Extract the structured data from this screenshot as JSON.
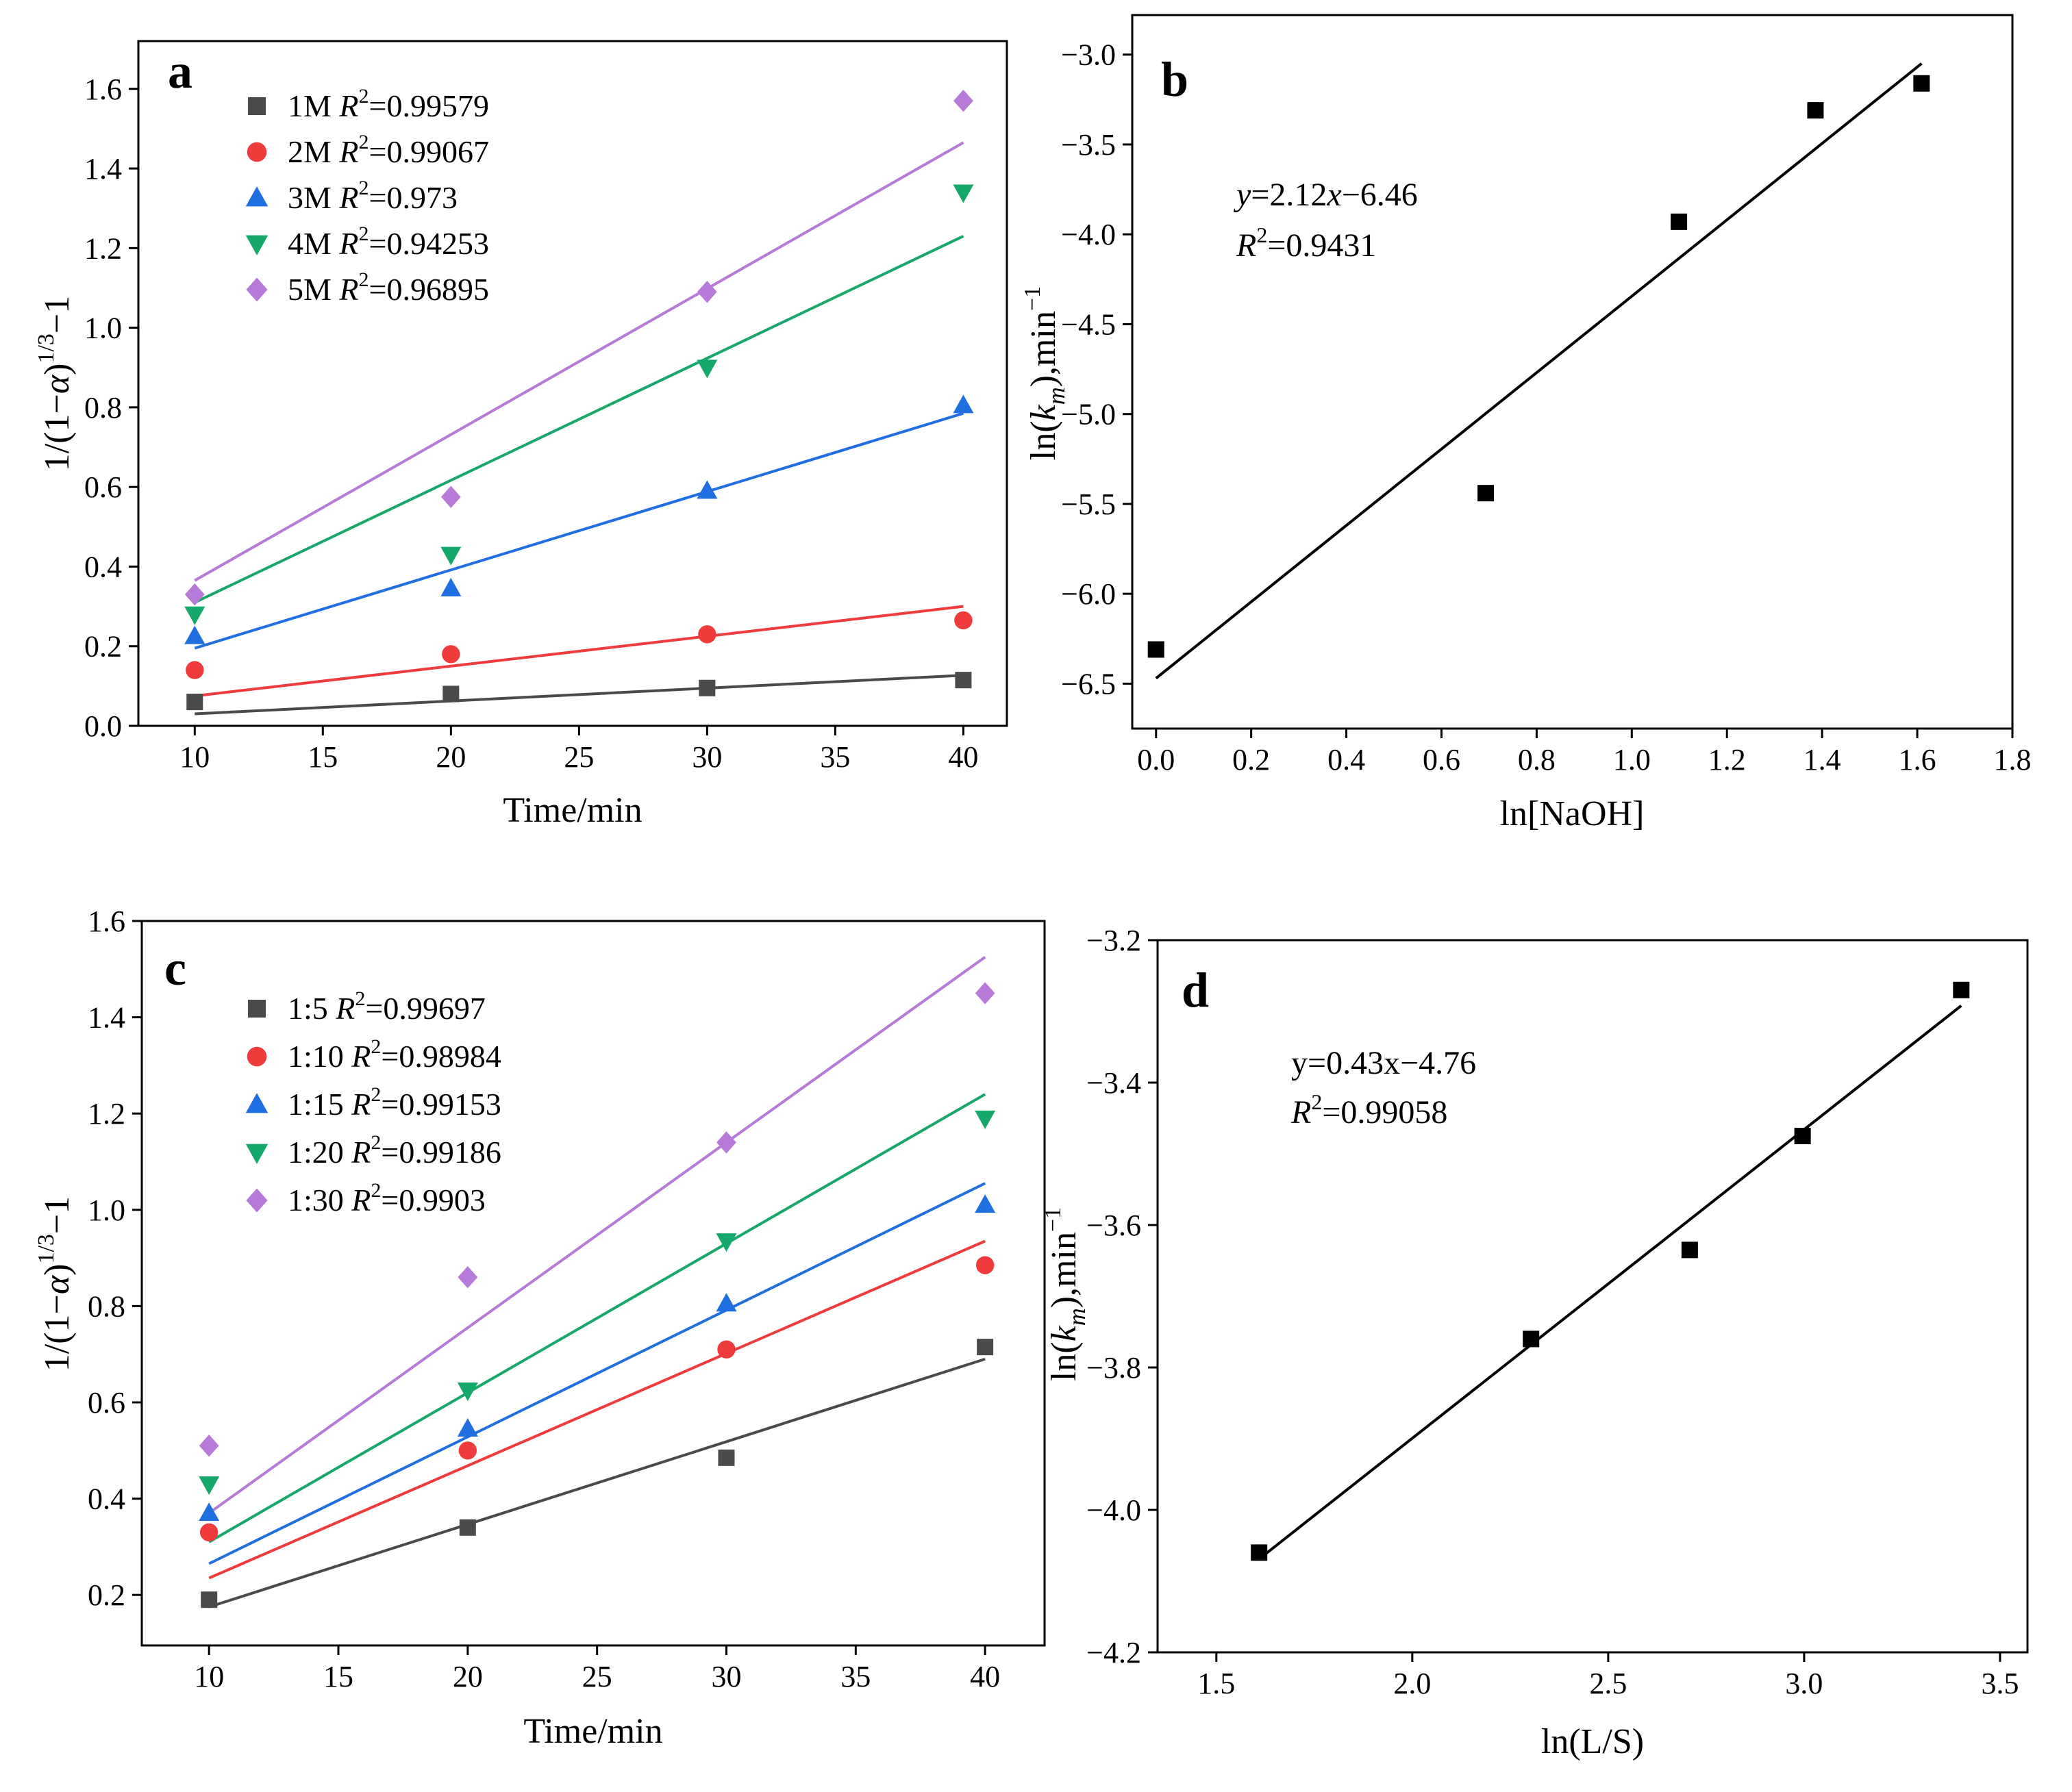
{
  "colors": {
    "series1": "#4a4a4a",
    "series2": "#ef3b3b",
    "series3": "#1f6fe0",
    "series4": "#15a86a",
    "series5": "#b77ad8",
    "black": "#000000"
  },
  "chart_data": [
    {
      "panel": "a",
      "type": "scatter",
      "xlabel": "Time/min",
      "ylabel": {
        "main": "1/(1−",
        "alpha": "α",
        "mid": ")",
        "sup": "1/3",
        "tail": "−1"
      },
      "xlim": [
        7.8,
        41.7
      ],
      "ylim": [
        0,
        1.72
      ],
      "xticks": [
        10,
        15,
        20,
        25,
        30,
        35,
        40
      ],
      "xtick_labels": [
        "10",
        "15",
        "20",
        "25",
        "30",
        "35",
        "40"
      ],
      "yticks": [
        0,
        0.2,
        0.4,
        0.6,
        0.8,
        1.0,
        1.2,
        1.4,
        1.6
      ],
      "ytick_labels": [
        "0.0",
        "0.2",
        "0.4",
        "0.6",
        "0.8",
        "1.0",
        "1.2",
        "1.4",
        "1.6"
      ],
      "legend_position": "top-left",
      "series": [
        {
          "name": "1M",
          "r2_label": "R",
          "r2_sup": "2",
          "r2_value": "=0.99579",
          "marker": "square",
          "color": "#4a4a4a",
          "x": [
            10,
            20,
            30,
            40
          ],
          "values": [
            0.06,
            0.08,
            0.095,
            0.115
          ],
          "fit": [
            0.03,
            0.127
          ]
        },
        {
          "name": "2M",
          "r2_label": "R",
          "r2_sup": "2",
          "r2_value": "=0.99067",
          "marker": "circle",
          "color": "#ef3b3b",
          "x": [
            10,
            20,
            30,
            40
          ],
          "values": [
            0.14,
            0.18,
            0.23,
            0.265
          ],
          "fit": [
            0.075,
            0.3
          ]
        },
        {
          "name": "3M",
          "r2_label": "R",
          "r2_sup": "2",
          "r2_value": "=0.973",
          "marker": "triangle-up",
          "color": "#1f6fe0",
          "x": [
            10,
            20,
            30,
            40
          ],
          "values": [
            0.225,
            0.345,
            0.59,
            0.805
          ],
          "fit": [
            0.195,
            0.785
          ]
        },
        {
          "name": "4M",
          "r2_label": "R",
          "r2_sup": "2",
          "r2_value": "=0.94253",
          "marker": "triangle-down",
          "color": "#15a86a",
          "x": [
            10,
            20,
            30,
            40
          ],
          "values": [
            0.28,
            0.43,
            0.9,
            1.34
          ],
          "fit": [
            0.31,
            1.23
          ]
        },
        {
          "name": "5M",
          "r2_label": "R",
          "r2_sup": "2",
          "r2_value": "=0.96895",
          "marker": "diamond",
          "color": "#b77ad8",
          "x": [
            10,
            20,
            30,
            40
          ],
          "values": [
            0.33,
            0.575,
            1.09,
            1.57
          ],
          "fit": [
            0.365,
            1.465
          ]
        }
      ]
    },
    {
      "panel": "b",
      "type": "scatter",
      "xlabel": "ln[NaOH]",
      "ylabel": {
        "pre": "ln(",
        "k": "k",
        "sub": "m",
        "post": "),min",
        "sup": "−1"
      },
      "xlim": [
        -0.05,
        1.8
      ],
      "ylim": [
        -6.75,
        -2.78
      ],
      "xticks": [
        0.0,
        0.2,
        0.4,
        0.6,
        0.8,
        1.0,
        1.2,
        1.4,
        1.6,
        1.8
      ],
      "xtick_labels": [
        "0.0",
        "0.2",
        "0.4",
        "0.6",
        "0.8",
        "1.0",
        "1.2",
        "1.4",
        "1.6",
        "1.8"
      ],
      "yticks": [
        -6.5,
        -6.0,
        -5.5,
        -5.0,
        -4.5,
        -4.0,
        -3.5,
        -3.0
      ],
      "ytick_labels": [
        "−6.5",
        "−6.0",
        "−5.5",
        "−5.0",
        "−4.5",
        "−4.0",
        "−3.5",
        "−3.0"
      ],
      "equation": {
        "y": "y",
        "eq": "=2.12",
        "x": "x",
        "rest": "−6.46",
        "r": "R",
        "r_sup": "2",
        "r_val": "=0.9431"
      },
      "series": [
        {
          "name": "data",
          "marker": "square",
          "color": "#000000",
          "x": [
            0.0,
            0.693,
            1.099,
            1.386,
            1.609
          ],
          "values": [
            -6.31,
            -5.44,
            -3.93,
            -3.31,
            -3.16
          ],
          "fit_x": [
            0.0,
            1.609
          ],
          "fit": [
            -6.47,
            -3.05
          ]
        }
      ]
    },
    {
      "panel": "c",
      "type": "scatter",
      "xlabel": "Time/min",
      "ylabel": {
        "main": "1/(1−",
        "alpha": "α",
        "mid": ")",
        "sup": "1/3",
        "tail": "−1"
      },
      "xlim": [
        7.4,
        42.3
      ],
      "ylim": [
        0.095,
        1.6
      ],
      "xticks": [
        10,
        15,
        20,
        25,
        30,
        35,
        40
      ],
      "xtick_labels": [
        "10",
        "15",
        "20",
        "25",
        "30",
        "35",
        "40"
      ],
      "yticks": [
        0.2,
        0.4,
        0.6,
        0.8,
        1.0,
        1.2,
        1.4,
        1.6
      ],
      "ytick_labels": [
        "0.2",
        "0.4",
        "0.6",
        "0.8",
        "1.0",
        "1.2",
        "1.4",
        "1.6"
      ],
      "legend_position": "top-left",
      "series": [
        {
          "name": "1:5 ",
          "r2_label": "R",
          "r2_sup": "2",
          "r2_value": "=0.99697",
          "marker": "square",
          "color": "#4a4a4a",
          "x": [
            10,
            20,
            30,
            40
          ],
          "values": [
            0.19,
            0.34,
            0.485,
            0.715
          ],
          "fit": [
            0.175,
            0.69
          ]
        },
        {
          "name": "1:10",
          "r2_label": "R",
          "r2_sup": "2",
          "r2_value": "=0.98984",
          "marker": "circle",
          "color": "#ef3b3b",
          "x": [
            10,
            20,
            30,
            40
          ],
          "values": [
            0.33,
            0.5,
            0.71,
            0.885
          ],
          "fit": [
            0.235,
            0.935
          ]
        },
        {
          "name": "1:15",
          "r2_label": "R",
          "r2_sup": "2",
          "r2_value": "=0.99153",
          "marker": "triangle-up",
          "color": "#1f6fe0",
          "x": [
            10,
            20,
            30,
            40
          ],
          "values": [
            0.37,
            0.545,
            0.805,
            1.01
          ],
          "fit": [
            0.265,
            1.055
          ]
        },
        {
          "name": "1:20",
          "r2_label": "R",
          "r2_sup": "2",
          "r2_value": "=0.99186",
          "marker": "triangle-down",
          "color": "#15a86a",
          "x": [
            10,
            20,
            30,
            40
          ],
          "values": [
            0.43,
            0.625,
            0.935,
            1.19
          ],
          "fit": [
            0.31,
            1.24
          ]
        },
        {
          "name": "1:30",
          "r2_label": "R",
          "r2_sup": "2",
          "r2_value": "=0.9903",
          "marker": "diamond",
          "color": "#b77ad8",
          "x": [
            10,
            20,
            30,
            40
          ],
          "values": [
            0.51,
            0.86,
            1.14,
            1.45
          ],
          "fit": [
            0.37,
            1.525
          ]
        }
      ]
    },
    {
      "panel": "d",
      "type": "scatter",
      "xlabel": "ln(L/S)",
      "ylabel": {
        "pre": "ln(",
        "k": "k",
        "sub": "m",
        "post": "),min",
        "sup": "−1"
      },
      "xlim": [
        1.35,
        3.57
      ],
      "ylim": [
        -4.2,
        -3.2
      ],
      "xticks": [
        1.5,
        2.0,
        2.5,
        3.0,
        3.5
      ],
      "xtick_labels": [
        "1.5",
        "2.0",
        "2.5",
        "3.0",
        "3.5"
      ],
      "yticks": [
        -4.2,
        -4.0,
        -3.8,
        -3.6,
        -3.4,
        -3.2
      ],
      "ytick_labels": [
        "−4.2",
        "−4.0",
        "−3.8",
        "−3.6",
        "−3.4",
        "−3.2"
      ],
      "equation": {
        "line1": "y=0.43x−4.76",
        "r": "R",
        "r_sup": "2",
        "r_val": "=0.99058"
      },
      "series": [
        {
          "name": "data",
          "marker": "square",
          "color": "#000000",
          "x": [
            1.609,
            2.303,
            2.708,
            2.996,
            3.401
          ],
          "values": [
            -4.06,
            -3.76,
            -3.635,
            -3.475,
            -3.27
          ],
          "fit_x": [
            1.609,
            3.401
          ],
          "fit": [
            -4.069,
            -3.292
          ]
        }
      ]
    }
  ]
}
